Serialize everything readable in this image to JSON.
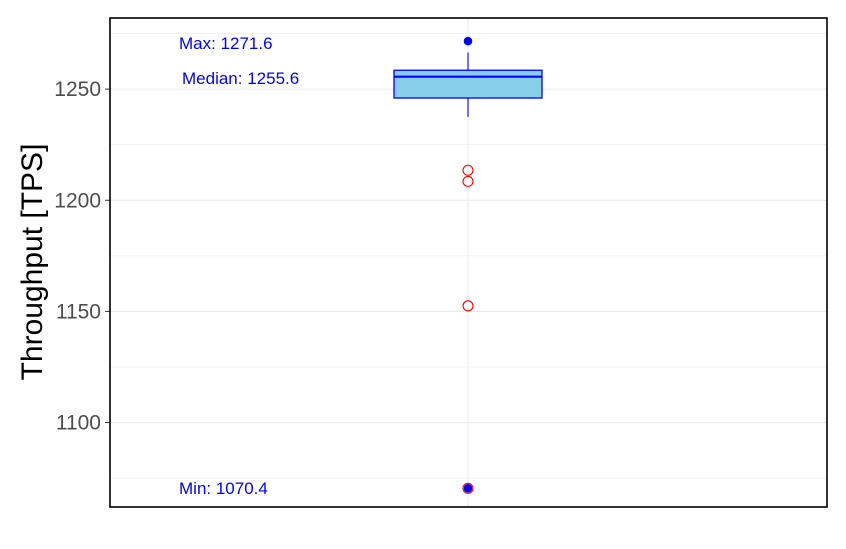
{
  "chart_data": {
    "type": "box",
    "ylabel": "Throughput [TPS]",
    "yticks": [
      1100,
      1150,
      1200,
      1250
    ],
    "ylim": [
      1062,
      1282
    ],
    "grid": true,
    "box": {
      "q1": 1246,
      "median": 1255.6,
      "q3": 1258.5,
      "whisker_low": 1237.5,
      "whisker_high": 1266.5
    },
    "outliers": [
      1213.5,
      1208.5,
      1152.5
    ],
    "max": 1271.6,
    "min": 1070.4,
    "annotations": {
      "max": "Max: 1271.6",
      "median": "Median: 1255.6",
      "min": "Min: 1070.4"
    },
    "colors": {
      "box_fill": "#87ceeb",
      "box_stroke": "#0000ff",
      "outlier": "#ff0000",
      "extreme_point": "#0000ff",
      "grid": "#ebebeb",
      "annotation": "#0000ff"
    }
  }
}
